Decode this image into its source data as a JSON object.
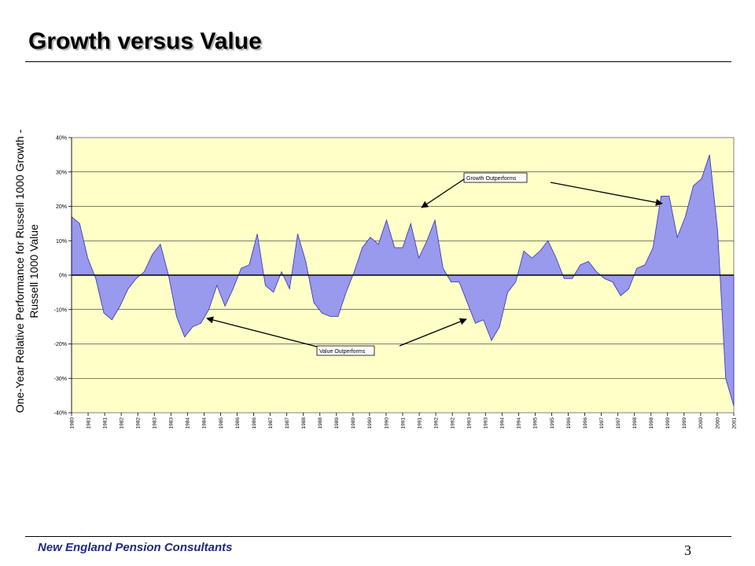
{
  "slide": {
    "title": "Growth versus Value",
    "footer": "New England Pension Consultants",
    "page_number": "3"
  },
  "colors": {
    "plot_bg": "#ffffc8",
    "area_fill": "#9999ee",
    "area_stroke": "#3333aa"
  },
  "chart_data": {
    "type": "area",
    "ylabel_lines": [
      "One-Year Relative Performance for Russell 1000 Growth -",
      "Russell 1000 Value"
    ],
    "ylim": [
      -0.4,
      0.4
    ],
    "yticks": [
      "40%",
      "30%",
      "20%",
      "10%",
      "0%",
      "-10%",
      "-20%",
      "-30%",
      "-40%"
    ],
    "xtick_labels": [
      "1980",
      "1981",
      "1981",
      "1982",
      "1982",
      "1983",
      "1983",
      "1984",
      "1984",
      "1985",
      "1986",
      "1986",
      "1987",
      "1987",
      "1988",
      "1988",
      "1989",
      "1989",
      "1990",
      "1990",
      "1991",
      "1991",
      "1992",
      "1992",
      "1993",
      "1993",
      "1994",
      "1994",
      "1995",
      "1995",
      "1996",
      "1996",
      "1997",
      "1997",
      "1998",
      "1998",
      "1999",
      "1999",
      "2000",
      "2000",
      "2001"
    ],
    "grid": true,
    "annotations": [
      "Growth Outperforms",
      "Value Outperforms"
    ],
    "values": [
      0.17,
      0.15,
      0.05,
      -0.01,
      -0.11,
      -0.13,
      -0.09,
      -0.04,
      -0.01,
      0.01,
      0.06,
      0.09,
      0.0,
      -0.12,
      -0.18,
      -0.15,
      -0.14,
      -0.1,
      -0.03,
      -0.09,
      -0.04,
      0.02,
      0.03,
      0.12,
      -0.03,
      -0.05,
      0.01,
      -0.04,
      0.12,
      0.04,
      -0.08,
      -0.11,
      -0.12,
      -0.12,
      -0.05,
      0.01,
      0.08,
      0.11,
      0.09,
      0.16,
      0.08,
      0.08,
      0.15,
      0.05,
      0.1,
      0.16,
      0.02,
      -0.02,
      -0.02,
      -0.08,
      -0.14,
      -0.13,
      -0.19,
      -0.15,
      -0.05,
      -0.02,
      0.07,
      0.05,
      0.07,
      0.1,
      0.05,
      -0.01,
      -0.01,
      0.03,
      0.04,
      0.01,
      -0.01,
      -0.02,
      -0.06,
      -0.04,
      0.02,
      0.03,
      0.08,
      0.23,
      0.23,
      0.11,
      0.17,
      0.26,
      0.28,
      0.35,
      0.13,
      -0.3,
      -0.38
    ]
  }
}
